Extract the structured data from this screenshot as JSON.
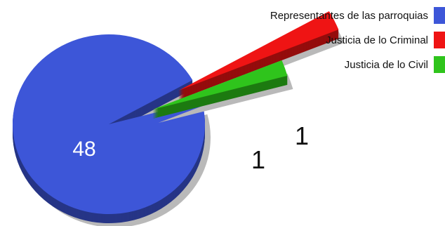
{
  "chart_data": {
    "type": "pie",
    "slices": [
      {
        "name": "Representantes de las parroquias",
        "value": 48,
        "label": "48",
        "color": "#3d56d8"
      },
      {
        "name": "Justicia de lo Criminal",
        "value": 1,
        "label": "1",
        "color": "#ef1414"
      },
      {
        "name": "Justicia de lo Civil",
        "value": 1,
        "label": "1",
        "color": "#2fc41c"
      }
    ],
    "legend_position": "top-right",
    "style": "3d-exploded",
    "title": ""
  }
}
